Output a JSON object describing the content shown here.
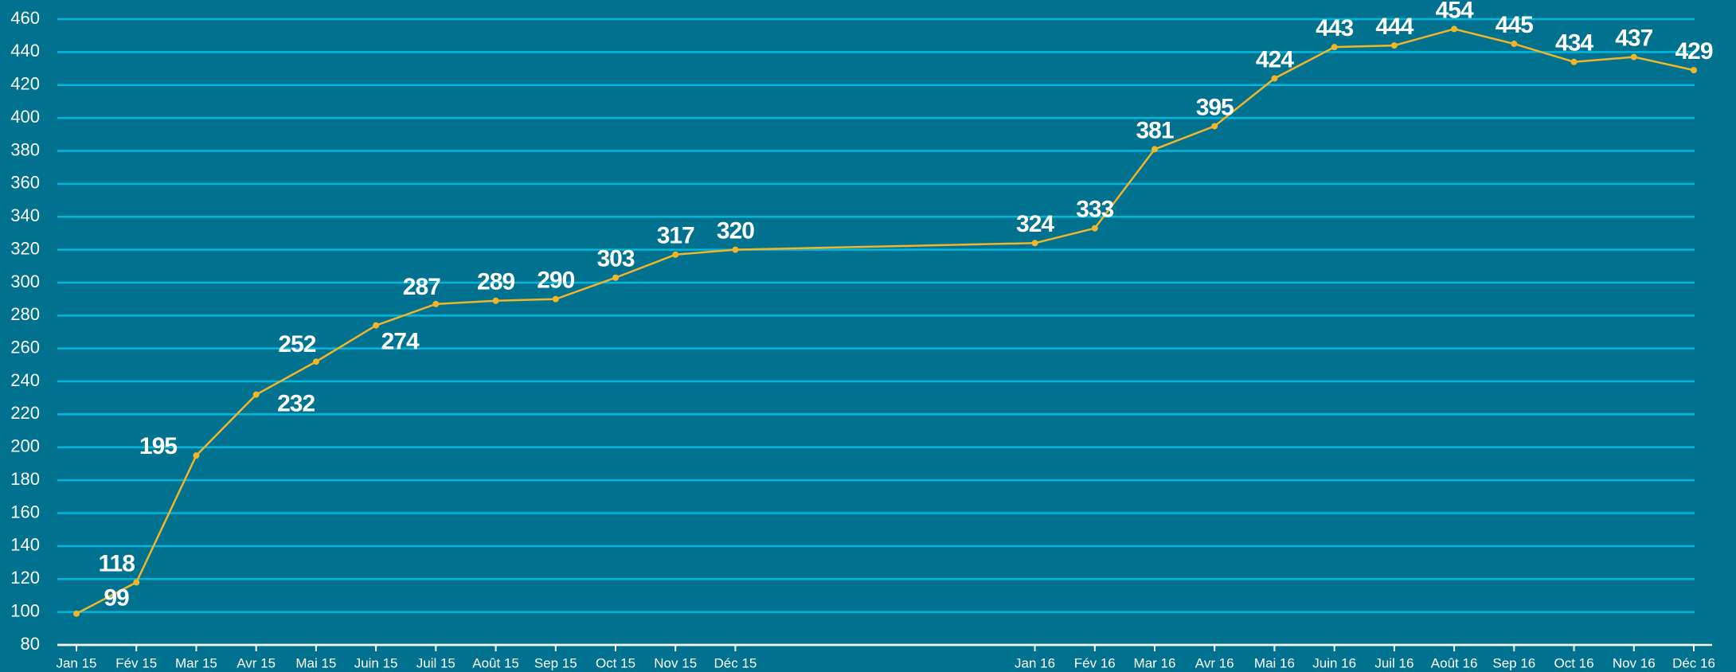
{
  "chart_data": {
    "type": "line",
    "categories": [
      "Jan 15",
      "Fév 15",
      "Mar 15",
      "Avr 15",
      "Mai 15",
      "Juin 15",
      "Juil 15",
      "Août 15",
      "Sep 15",
      "Oct 15",
      "Nov 15",
      "Déc 15",
      null,
      null,
      null,
      null,
      "Jan 16",
      "Fév 16",
      "Mar 16",
      "Avr 16",
      "Mai 16",
      "Juin 16",
      "Juil 16",
      "Août 16",
      "Sep 16",
      "Oct 16",
      "Nov 16",
      "Déc 16"
    ],
    "series": [
      {
        "color": "#f2b429",
        "values": [
          99,
          118,
          195,
          232,
          252,
          274,
          287,
          289,
          290,
          303,
          317,
          320,
          null,
          null,
          null,
          null,
          324,
          333,
          381,
          395,
          424,
          443,
          444,
          454,
          445,
          434,
          437,
          429
        ]
      }
    ],
    "ylim": [
      80,
      460
    ],
    "yticks": [
      80,
      100,
      120,
      140,
      160,
      180,
      200,
      220,
      240,
      260,
      280,
      300,
      320,
      340,
      360,
      380,
      400,
      420,
      440,
      460
    ],
    "grid": true
  }
}
